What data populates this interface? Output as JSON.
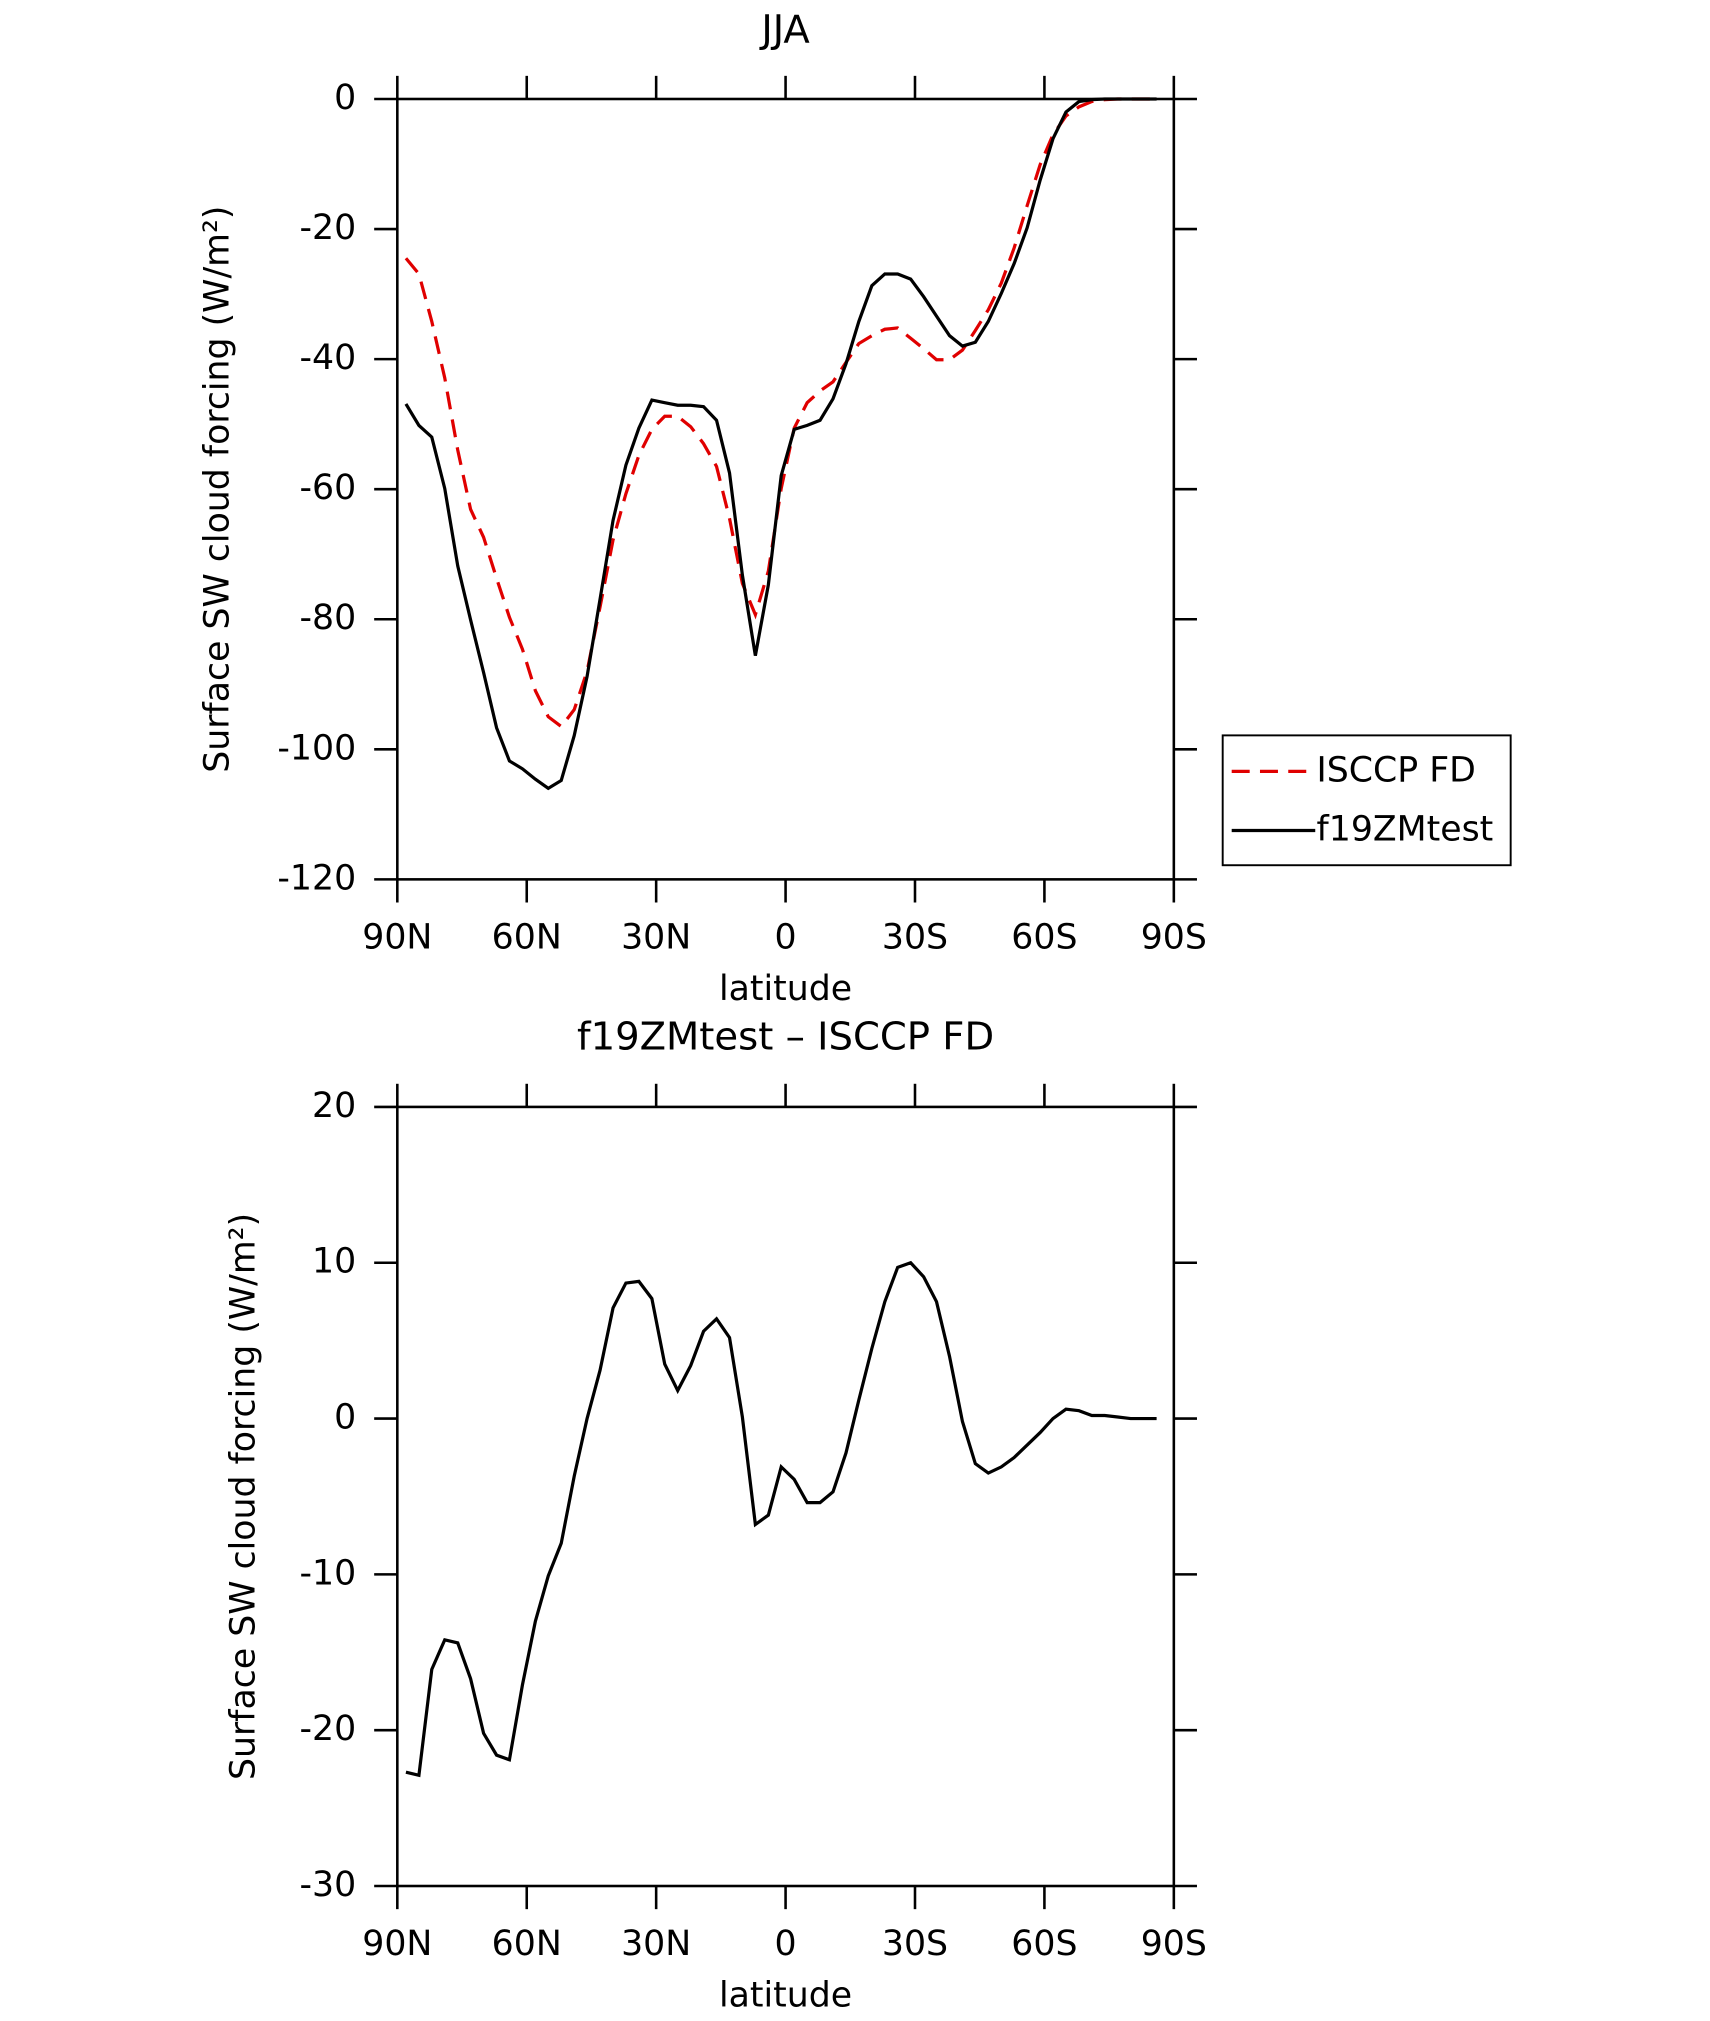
{
  "chart_data": [
    {
      "type": "line",
      "title": "JJA",
      "x_label": "latitude",
      "y_label": "Surface SW cloud forcing (W/m²)",
      "x": [
        88,
        85,
        82,
        79,
        76,
        73,
        70,
        67,
        64,
        61,
        58,
        55,
        52,
        49,
        46,
        43,
        40,
        37,
        34,
        31,
        28,
        25,
        22,
        19,
        16,
        13,
        10,
        7,
        4,
        1,
        -2,
        -5,
        -8,
        -11,
        -14,
        -17,
        -20,
        -23,
        -26,
        -29,
        -32,
        -35,
        -38,
        -41,
        -44,
        -47,
        -50,
        -53,
        -56,
        -59,
        -62,
        -65,
        -68,
        -71,
        -74,
        -77,
        -80,
        -83,
        -86
      ],
      "series": [
        {
          "name": "ISCCP FD",
          "color": "#e00000",
          "dash": "dashed",
          "values": [
            -24.5,
            -26.9,
            -34.2,
            -42.9,
            -54.0,
            -63.1,
            -67.4,
            -73.7,
            -79.7,
            -84.6,
            -91.0,
            -95.0,
            -96.5,
            -93.9,
            -88.0,
            -78.1,
            -67.8,
            -60.7,
            -54.8,
            -50.8,
            -48.8,
            -48.8,
            -50.4,
            -53.0,
            -56.5,
            -64.5,
            -74.5,
            -79.3,
            -72.6,
            -59.9,
            -50.6,
            -46.7,
            -44.9,
            -43.5,
            -40.5,
            -37.6,
            -36.4,
            -35.4,
            -35.2,
            -36.8,
            -38.4,
            -40.1,
            -40.1,
            -38.6,
            -35.6,
            -32.4,
            -28.3,
            -22.9,
            -16.4,
            -10.1,
            -5.5,
            -2.6,
            -1.2,
            -0.4,
            -0.1,
            0,
            0,
            0,
            0
          ]
        },
        {
          "name": "f19ZMtest",
          "color": "#000000",
          "dash": "solid",
          "values": [
            -46.9,
            -50.2,
            -52.0,
            -59.9,
            -71.8,
            -80.1,
            -88.2,
            -96.7,
            -101.8,
            -103.0,
            -104.6,
            -106.0,
            -104.8,
            -97.9,
            -88.8,
            -76.9,
            -64.8,
            -56.3,
            -50.6,
            -46.3,
            -46.7,
            -47.1,
            -47.1,
            -47.3,
            -49.4,
            -57.5,
            -73.2,
            -85.6,
            -74.7,
            -57.9,
            -50.8,
            -50.2,
            -49.4,
            -46.1,
            -40.7,
            -34.2,
            -28.7,
            -26.9,
            -26.9,
            -27.7,
            -30.4,
            -33.4,
            -36.4,
            -38.0,
            -37.4,
            -34.2,
            -29.9,
            -25.3,
            -19.8,
            -12.5,
            -6.1,
            -2.0,
            -0.4,
            -0.1,
            0,
            0,
            0,
            0,
            0
          ]
        }
      ],
      "xlim": [
        90,
        -90
      ],
      "ylim": [
        -120,
        0
      ],
      "xticks": [
        {
          "value": 90,
          "label": "90N"
        },
        {
          "value": 60,
          "label": "60N"
        },
        {
          "value": 30,
          "label": "30N"
        },
        0,
        {
          "value": -30,
          "label": "30S"
        },
        {
          "value": -60,
          "label": "60S"
        },
        {
          "value": -90,
          "label": "90S"
        }
      ],
      "yticks": [
        -120,
        -100,
        -80,
        -60,
        -40,
        -20,
        0
      ],
      "legend": "right"
    },
    {
      "type": "line",
      "title": "f19ZMtest – ISCCP FD",
      "x_label": "latitude",
      "y_label": "Surface SW cloud forcing (W/m²)",
      "x": [
        88,
        85,
        82,
        79,
        76,
        73,
        70,
        67,
        64,
        61,
        58,
        55,
        52,
        49,
        46,
        43,
        40,
        37,
        34,
        31,
        28,
        25,
        22,
        19,
        16,
        13,
        10,
        7,
        4,
        1,
        -2,
        -5,
        -8,
        -11,
        -14,
        -17,
        -20,
        -23,
        -26,
        -29,
        -32,
        -35,
        -38,
        -41,
        -44,
        -47,
        -50,
        -53,
        -56,
        -59,
        -62,
        -65,
        -68,
        -71,
        -74,
        -77,
        -80,
        -83,
        -86
      ],
      "series": [
        {
          "color": "#000000",
          "dash": "solid",
          "values": [
            -22.7,
            -22.9,
            -16.1,
            -14.2,
            -14.4,
            -16.7,
            -20.2,
            -21.6,
            -21.9,
            -17.1,
            -13.0,
            -10.1,
            -8.0,
            -3.7,
            0.0,
            3.1,
            7.1,
            8.7,
            8.8,
            7.7,
            3.5,
            1.8,
            3.4,
            5.6,
            6.4,
            5.2,
            0.1,
            -6.8,
            -6.2,
            -3.1,
            -3.9,
            -5.4,
            -5.4,
            -4.7,
            -2.2,
            1.2,
            4.5,
            7.5,
            9.7,
            10.0,
            9.1,
            7.5,
            4.0,
            -0.2,
            -2.9,
            -3.5,
            -3.1,
            -2.5,
            -1.7,
            -0.9,
            0.0,
            0.6,
            0.5,
            0.2,
            0.2,
            0.1,
            0.0,
            0.0,
            0.0
          ]
        }
      ],
      "xlim": [
        90,
        -90
      ],
      "ylim": [
        -30,
        20
      ],
      "xticks": [
        {
          "value": 90,
          "label": "90N"
        },
        {
          "value": 60,
          "label": "60N"
        },
        {
          "value": 30,
          "label": "30N"
        },
        0,
        {
          "value": -30,
          "label": "30S"
        },
        {
          "value": -60,
          "label": "60S"
        },
        {
          "value": -90,
          "label": "90S"
        }
      ],
      "yticks": [
        -30,
        -20,
        -10,
        0,
        10,
        20
      ]
    }
  ]
}
